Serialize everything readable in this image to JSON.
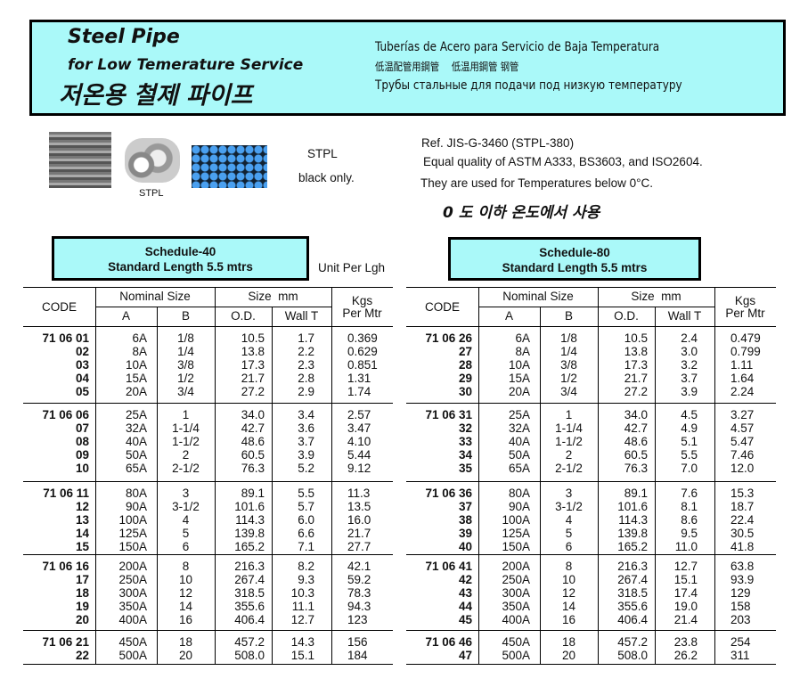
{
  "header": {
    "title_line1": "Steel Pipe",
    "title_line2": "for Low Temerature Service",
    "title_korean": "저온용 철제 파이프",
    "spanish": "Tuberías de Acero para Servicio de Baja Temperatura",
    "chinese": "低温配管用鋼管　 低温用鋼管  钢管",
    "russian": "Трубы стальные для подачи под низкую  температуру"
  },
  "photos": {
    "caption": "STPL"
  },
  "product": {
    "type": "STPL",
    "finish": "black only."
  },
  "info": {
    "ref": "Ref. JIS-G-3460  (STPL-380)",
    "quality": "Equal quality of ASTM   A333, BS3603, and ISO2604.",
    "usage": "They are used for Temperatures below 0°C.",
    "usage_korean": "0 도 이하 온도에서 사용"
  },
  "unit_note": "Unit Per Lgh",
  "columns": {
    "code": "CODE",
    "nominal": "Nominal Size",
    "a": "A",
    "b": "B",
    "size": "Size  mm",
    "od": "O.D.",
    "wall": "Wall T",
    "kgs1": "Kgs",
    "kgs2": "Per Mtr"
  },
  "colors": {
    "header_bg": "#aaf9f9",
    "border": "#000000"
  },
  "tables": [
    {
      "schedule": "Schedule-40",
      "length": "Standard Length 5.5 mtrs",
      "groups": [
        [
          [
            "71 06 01",
            "6A",
            "1/8",
            "10.5",
            "1.7",
            "0.369"
          ],
          [
            "02",
            "8A",
            "1/4",
            "13.8",
            "2.2",
            "0.629"
          ],
          [
            "03",
            "10A",
            "3/8",
            "17.3",
            "2.3",
            "0.851"
          ],
          [
            "04",
            "15A",
            "1/2",
            "21.7",
            "2.8",
            "1.31"
          ],
          [
            "05",
            "20A",
            "3/4",
            "27.2",
            "2.9",
            "1.74"
          ]
        ],
        [
          [
            "71 06 06",
            "25A",
            "1",
            "34.0",
            "3.4",
            "2.57"
          ],
          [
            "07",
            "32A",
            "1-1/4",
            "42.7",
            "3.6",
            "3.47"
          ],
          [
            "08",
            "40A",
            "1-1/2",
            "48.6",
            "3.7",
            "4.10"
          ],
          [
            "09",
            "50A",
            "2",
            "60.5",
            "3.9",
            "5.44"
          ],
          [
            "10",
            "65A",
            "2-1/2",
            "76.3",
            "5.2",
            "9.12"
          ]
        ],
        [
          [
            "71 06 11",
            "80A",
            "3",
            "89.1",
            "5.5",
            "11.3"
          ],
          [
            "12",
            "90A",
            "3-1/2",
            "101.6",
            "5.7",
            "13.5"
          ],
          [
            "13",
            "100A",
            "4",
            "114.3",
            "6.0",
            "16.0"
          ],
          [
            "14",
            "125A",
            "5",
            "139.8",
            "6.6",
            "21.7"
          ],
          [
            "15",
            "150A",
            "6",
            "165.2",
            "7.1",
            "27.7"
          ]
        ],
        [
          [
            "71 06 16",
            "200A",
            "8",
            "216.3",
            "8.2",
            "42.1"
          ],
          [
            "17",
            "250A",
            "10",
            "267.4",
            "9.3",
            "59.2"
          ],
          [
            "18",
            "300A",
            "12",
            "318.5",
            "10.3",
            "78.3"
          ],
          [
            "19",
            "350A",
            "14",
            "355.6",
            "11.1",
            "94.3"
          ],
          [
            "20",
            "400A",
            "16",
            "406.4",
            "12.7",
            "123"
          ]
        ],
        [
          [
            "71 06 21",
            "450A",
            "18",
            "457.2",
            "14.3",
            "156"
          ],
          [
            "22",
            "500A",
            "20",
            "508.0",
            "15.1",
            "184"
          ]
        ]
      ]
    },
    {
      "schedule": "Schedule-80",
      "length": "Standard Length 5.5 mtrs",
      "groups": [
        [
          [
            "71 06 26",
            "6A",
            "1/8",
            "10.5",
            "2.4",
            "0.479"
          ],
          [
            "27",
            "8A",
            "1/4",
            "13.8",
            "3.0",
            "0.799"
          ],
          [
            "28",
            "10A",
            "3/8",
            "17.3",
            "3.2",
            "1.11"
          ],
          [
            "29",
            "15A",
            "1/2",
            "21.7",
            "3.7",
            "1.64"
          ],
          [
            "30",
            "20A",
            "3/4",
            "27.2",
            "3.9",
            "2.24"
          ]
        ],
        [
          [
            "71 06 31",
            "25A",
            "1",
            "34.0",
            "4.5",
            "3.27"
          ],
          [
            "32",
            "32A",
            "1-1/4",
            "42.7",
            "4.9",
            "4.57"
          ],
          [
            "33",
            "40A",
            "1-1/2",
            "48.6",
            "5.1",
            "5.47"
          ],
          [
            "34",
            "50A",
            "2",
            "60.5",
            "5.5",
            "7.46"
          ],
          [
            "35",
            "65A",
            "2-1/2",
            "76.3",
            "7.0",
            "12.0"
          ]
        ],
        [
          [
            "71 06 36",
            "80A",
            "3",
            "89.1",
            "7.6",
            "15.3"
          ],
          [
            "37",
            "90A",
            "3-1/2",
            "101.6",
            "8.1",
            "18.7"
          ],
          [
            "38",
            "100A",
            "4",
            "114.3",
            "8.6",
            "22.4"
          ],
          [
            "39",
            "125A",
            "5",
            "139.8",
            "9.5",
            "30.5"
          ],
          [
            "40",
            "150A",
            "6",
            "165.2",
            "11.0",
            "41.8"
          ]
        ],
        [
          [
            "71 06 41",
            "200A",
            "8",
            "216.3",
            "12.7",
            "63.8"
          ],
          [
            "42",
            "250A",
            "10",
            "267.4",
            "15.1",
            "93.9"
          ],
          [
            "43",
            "300A",
            "12",
            "318.5",
            "17.4",
            "129"
          ],
          [
            "44",
            "350A",
            "14",
            "355.6",
            "19.0",
            "158"
          ],
          [
            "45",
            "400A",
            "16",
            "406.4",
            "21.4",
            "203"
          ]
        ],
        [
          [
            "71 06 46",
            "450A",
            "18",
            "457.2",
            "23.8",
            "254"
          ],
          [
            "47",
            "500A",
            "20",
            "508.0",
            "26.2",
            "311"
          ]
        ]
      ]
    }
  ]
}
